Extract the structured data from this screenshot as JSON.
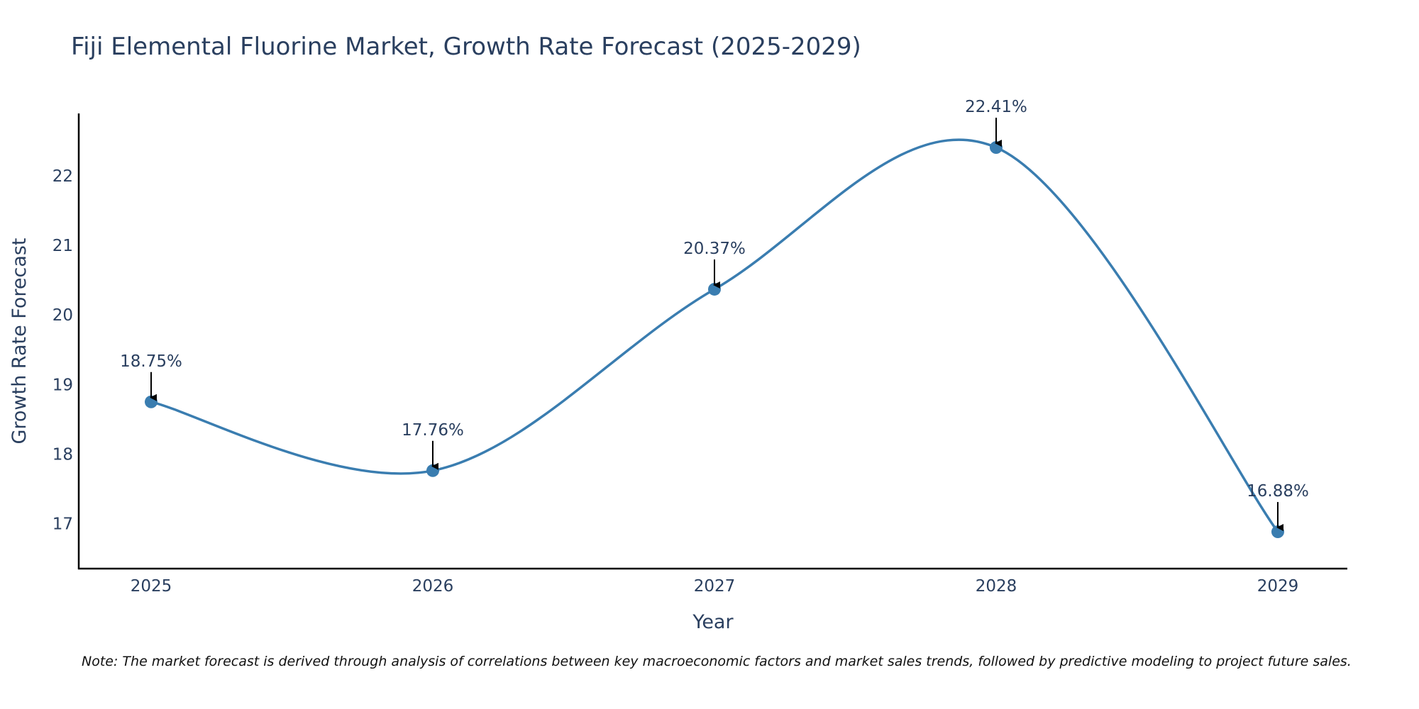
{
  "chart_data": {
    "type": "line",
    "title": "Fiji Elemental Fluorine Market, Growth Rate Forecast (2025-2029)",
    "xlabel": "Year",
    "ylabel": "Growth Rate Forecast",
    "categories": [
      "2025",
      "2026",
      "2027",
      "2028",
      "2029"
    ],
    "values": [
      18.75,
      17.76,
      20.37,
      22.41,
      16.88
    ],
    "data_labels": [
      "18.75%",
      "17.76%",
      "20.37%",
      "22.41%",
      "16.88%"
    ],
    "ylim": [
      16.35,
      22.9
    ],
    "yticks": [
      17,
      18,
      19,
      20,
      21,
      22
    ],
    "ytick_labels": [
      "17",
      "18",
      "19",
      "20",
      "21",
      "22"
    ],
    "line_shape": "spline",
    "line_color": "#3a7db0",
    "marker_color": "#3a7db0",
    "annotation_arrow_color": "#000000",
    "grid": false
  },
  "note": "Note: The market forecast is derived through analysis of correlations between key macroeconomic factors and market sales trends, followed by predictive modeling to project future sales."
}
